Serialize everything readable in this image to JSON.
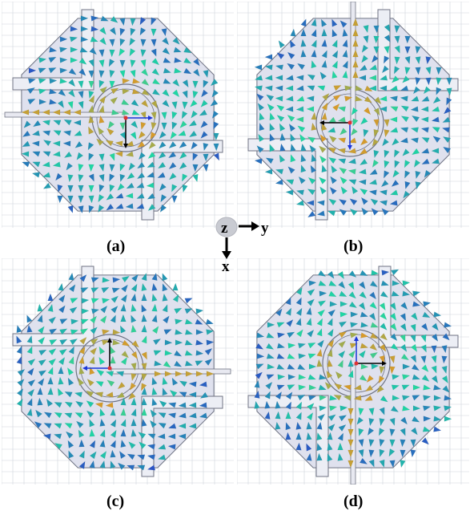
{
  "panels": [
    {
      "id": "a",
      "label": "(a)",
      "rotation": 0
    },
    {
      "id": "b",
      "label": "(b)",
      "rotation": 90
    },
    {
      "id": "c",
      "label": "(c)",
      "rotation": 180
    },
    {
      "id": "d",
      "label": "(d)",
      "rotation": 270
    }
  ],
  "axes": {
    "z": "z",
    "y": "y",
    "x": "x"
  },
  "colors": {
    "grid": "#cfd3dc",
    "patch": "#dfe1ee",
    "outline": "#6f7383",
    "arrow_low": "#2b45c8",
    "arrow_mid": "#1fd7a4",
    "arrow_high": "#d89a2a",
    "z_marker": "#c9cbd2"
  }
}
